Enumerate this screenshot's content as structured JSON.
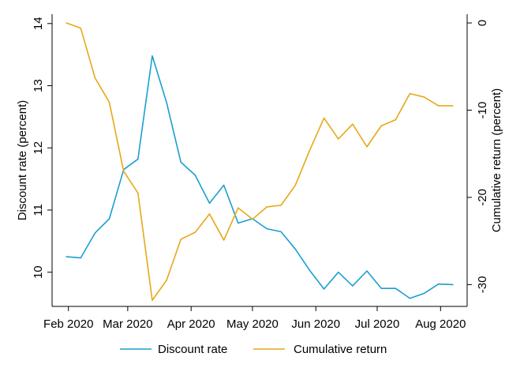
{
  "chart_data": {
    "type": "line",
    "title": "",
    "xlabel": "",
    "x_ticks": [
      "2020-02-01",
      "2020-03-01",
      "2020-04-01",
      "2020-05-01",
      "2020-06-01",
      "2020-07-01",
      "2020-08-01"
    ],
    "x_tick_labels": [
      "Feb 2020",
      "Mar 2020",
      "Apr 2020",
      "May 2020",
      "Jun 2020",
      "Jul 2020",
      "Aug 2020"
    ],
    "xlim": [
      "2020-01-24",
      "2020-08-14"
    ],
    "y_left": {
      "label": "Discount rate (percent)",
      "ticks": [
        10,
        11,
        12,
        13,
        14
      ],
      "tick_labels": [
        "10",
        "11",
        "12",
        "13",
        "14"
      ],
      "lim": [
        9.45,
        14.15
      ]
    },
    "y_right": {
      "label": "Cumulative return (percent)",
      "ticks": [
        0,
        -10,
        -20,
        -30
      ],
      "tick_labels": [
        "0",
        "-10",
        "-20",
        "-30"
      ],
      "lim": [
        -32.5,
        1.0
      ]
    },
    "grid": false,
    "legend_position": "bottom",
    "series": [
      {
        "name": "Discount rate",
        "axis": "left",
        "color": "#1a9fd0",
        "points": [
          [
            "2020-01-31",
            10.25
          ],
          [
            "2020-02-07",
            10.23
          ],
          [
            "2020-02-14",
            10.63
          ],
          [
            "2020-02-21",
            10.86
          ],
          [
            "2020-02-28",
            11.65
          ],
          [
            "2020-03-06",
            11.82
          ],
          [
            "2020-03-13",
            13.48
          ],
          [
            "2020-03-20",
            12.73
          ],
          [
            "2020-03-27",
            11.77
          ],
          [
            "2020-04-03",
            11.56
          ],
          [
            "2020-04-10",
            11.11
          ],
          [
            "2020-04-17",
            11.4
          ],
          [
            "2020-04-24",
            10.79
          ],
          [
            "2020-05-01",
            10.86
          ],
          [
            "2020-05-08",
            10.7
          ],
          [
            "2020-05-15",
            10.65
          ],
          [
            "2020-05-22",
            10.37
          ],
          [
            "2020-05-29",
            10.03
          ],
          [
            "2020-06-05",
            9.73
          ],
          [
            "2020-06-12",
            10.0
          ],
          [
            "2020-06-19",
            9.78
          ],
          [
            "2020-06-26",
            10.02
          ],
          [
            "2020-07-03",
            9.74
          ],
          [
            "2020-07-10",
            9.74
          ],
          [
            "2020-07-17",
            9.58
          ],
          [
            "2020-07-24",
            9.66
          ],
          [
            "2020-07-31",
            9.81
          ],
          [
            "2020-08-07",
            9.8
          ]
        ]
      },
      {
        "name": "Cumulative return",
        "axis": "right",
        "color": "#e6a817",
        "points": [
          [
            "2020-01-31",
            0.0
          ],
          [
            "2020-02-07",
            -0.6
          ],
          [
            "2020-02-14",
            -6.3
          ],
          [
            "2020-02-21",
            -9.1
          ],
          [
            "2020-02-28",
            -17.0
          ],
          [
            "2020-03-06",
            -19.5
          ],
          [
            "2020-03-13",
            -31.8
          ],
          [
            "2020-03-20",
            -29.5
          ],
          [
            "2020-03-27",
            -24.8
          ],
          [
            "2020-04-03",
            -24.0
          ],
          [
            "2020-04-10",
            -21.9
          ],
          [
            "2020-04-17",
            -24.9
          ],
          [
            "2020-04-24",
            -21.2
          ],
          [
            "2020-05-01",
            -22.5
          ],
          [
            "2020-05-08",
            -21.1
          ],
          [
            "2020-05-15",
            -20.9
          ],
          [
            "2020-05-22",
            -18.6
          ],
          [
            "2020-05-29",
            -14.6
          ],
          [
            "2020-06-05",
            -10.9
          ],
          [
            "2020-06-12",
            -13.3
          ],
          [
            "2020-06-19",
            -11.6
          ],
          [
            "2020-06-26",
            -14.2
          ],
          [
            "2020-07-03",
            -11.8
          ],
          [
            "2020-07-10",
            -11.1
          ],
          [
            "2020-07-17",
            -8.1
          ],
          [
            "2020-07-24",
            -8.5
          ],
          [
            "2020-07-31",
            -9.5
          ],
          [
            "2020-08-07",
            -9.5
          ]
        ]
      }
    ]
  }
}
